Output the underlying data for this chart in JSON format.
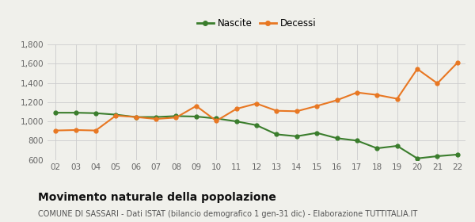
{
  "years": [
    "02",
    "03",
    "04",
    "05",
    "06",
    "07",
    "08",
    "09",
    "10",
    "11",
    "12",
    "13",
    "14",
    "15",
    "16",
    "17",
    "18",
    "19",
    "20",
    "21",
    "22"
  ],
  "nascite": [
    1090,
    1090,
    1085,
    1070,
    1045,
    1045,
    1055,
    1050,
    1030,
    1000,
    960,
    865,
    845,
    880,
    825,
    800,
    720,
    745,
    615,
    638,
    655
  ],
  "decessi": [
    905,
    910,
    905,
    1060,
    1045,
    1025,
    1040,
    1160,
    1005,
    1130,
    1185,
    1110,
    1105,
    1160,
    1220,
    1300,
    1275,
    1235,
    1545,
    1395,
    1610
  ],
  "nascite_color": "#3a7d2c",
  "decessi_color": "#e87722",
  "background_color": "#f0f0eb",
  "grid_color": "#cccccc",
  "title": "Movimento naturale della popolazione",
  "subtitle": "COMUNE DI SASSARI - Dati ISTAT (bilancio demografico 1 gen-31 dic) - Elaborazione TUTTITALIA.IT",
  "legend_nascite": "Nascite",
  "legend_decessi": "Decessi",
  "ylim": [
    600,
    1800
  ],
  "yticks": [
    600,
    800,
    1000,
    1200,
    1400,
    1600,
    1800
  ],
  "title_fontsize": 10,
  "subtitle_fontsize": 7,
  "tick_fontsize": 7.5,
  "legend_fontsize": 8.5,
  "line_width": 1.5,
  "marker_size": 3.5
}
